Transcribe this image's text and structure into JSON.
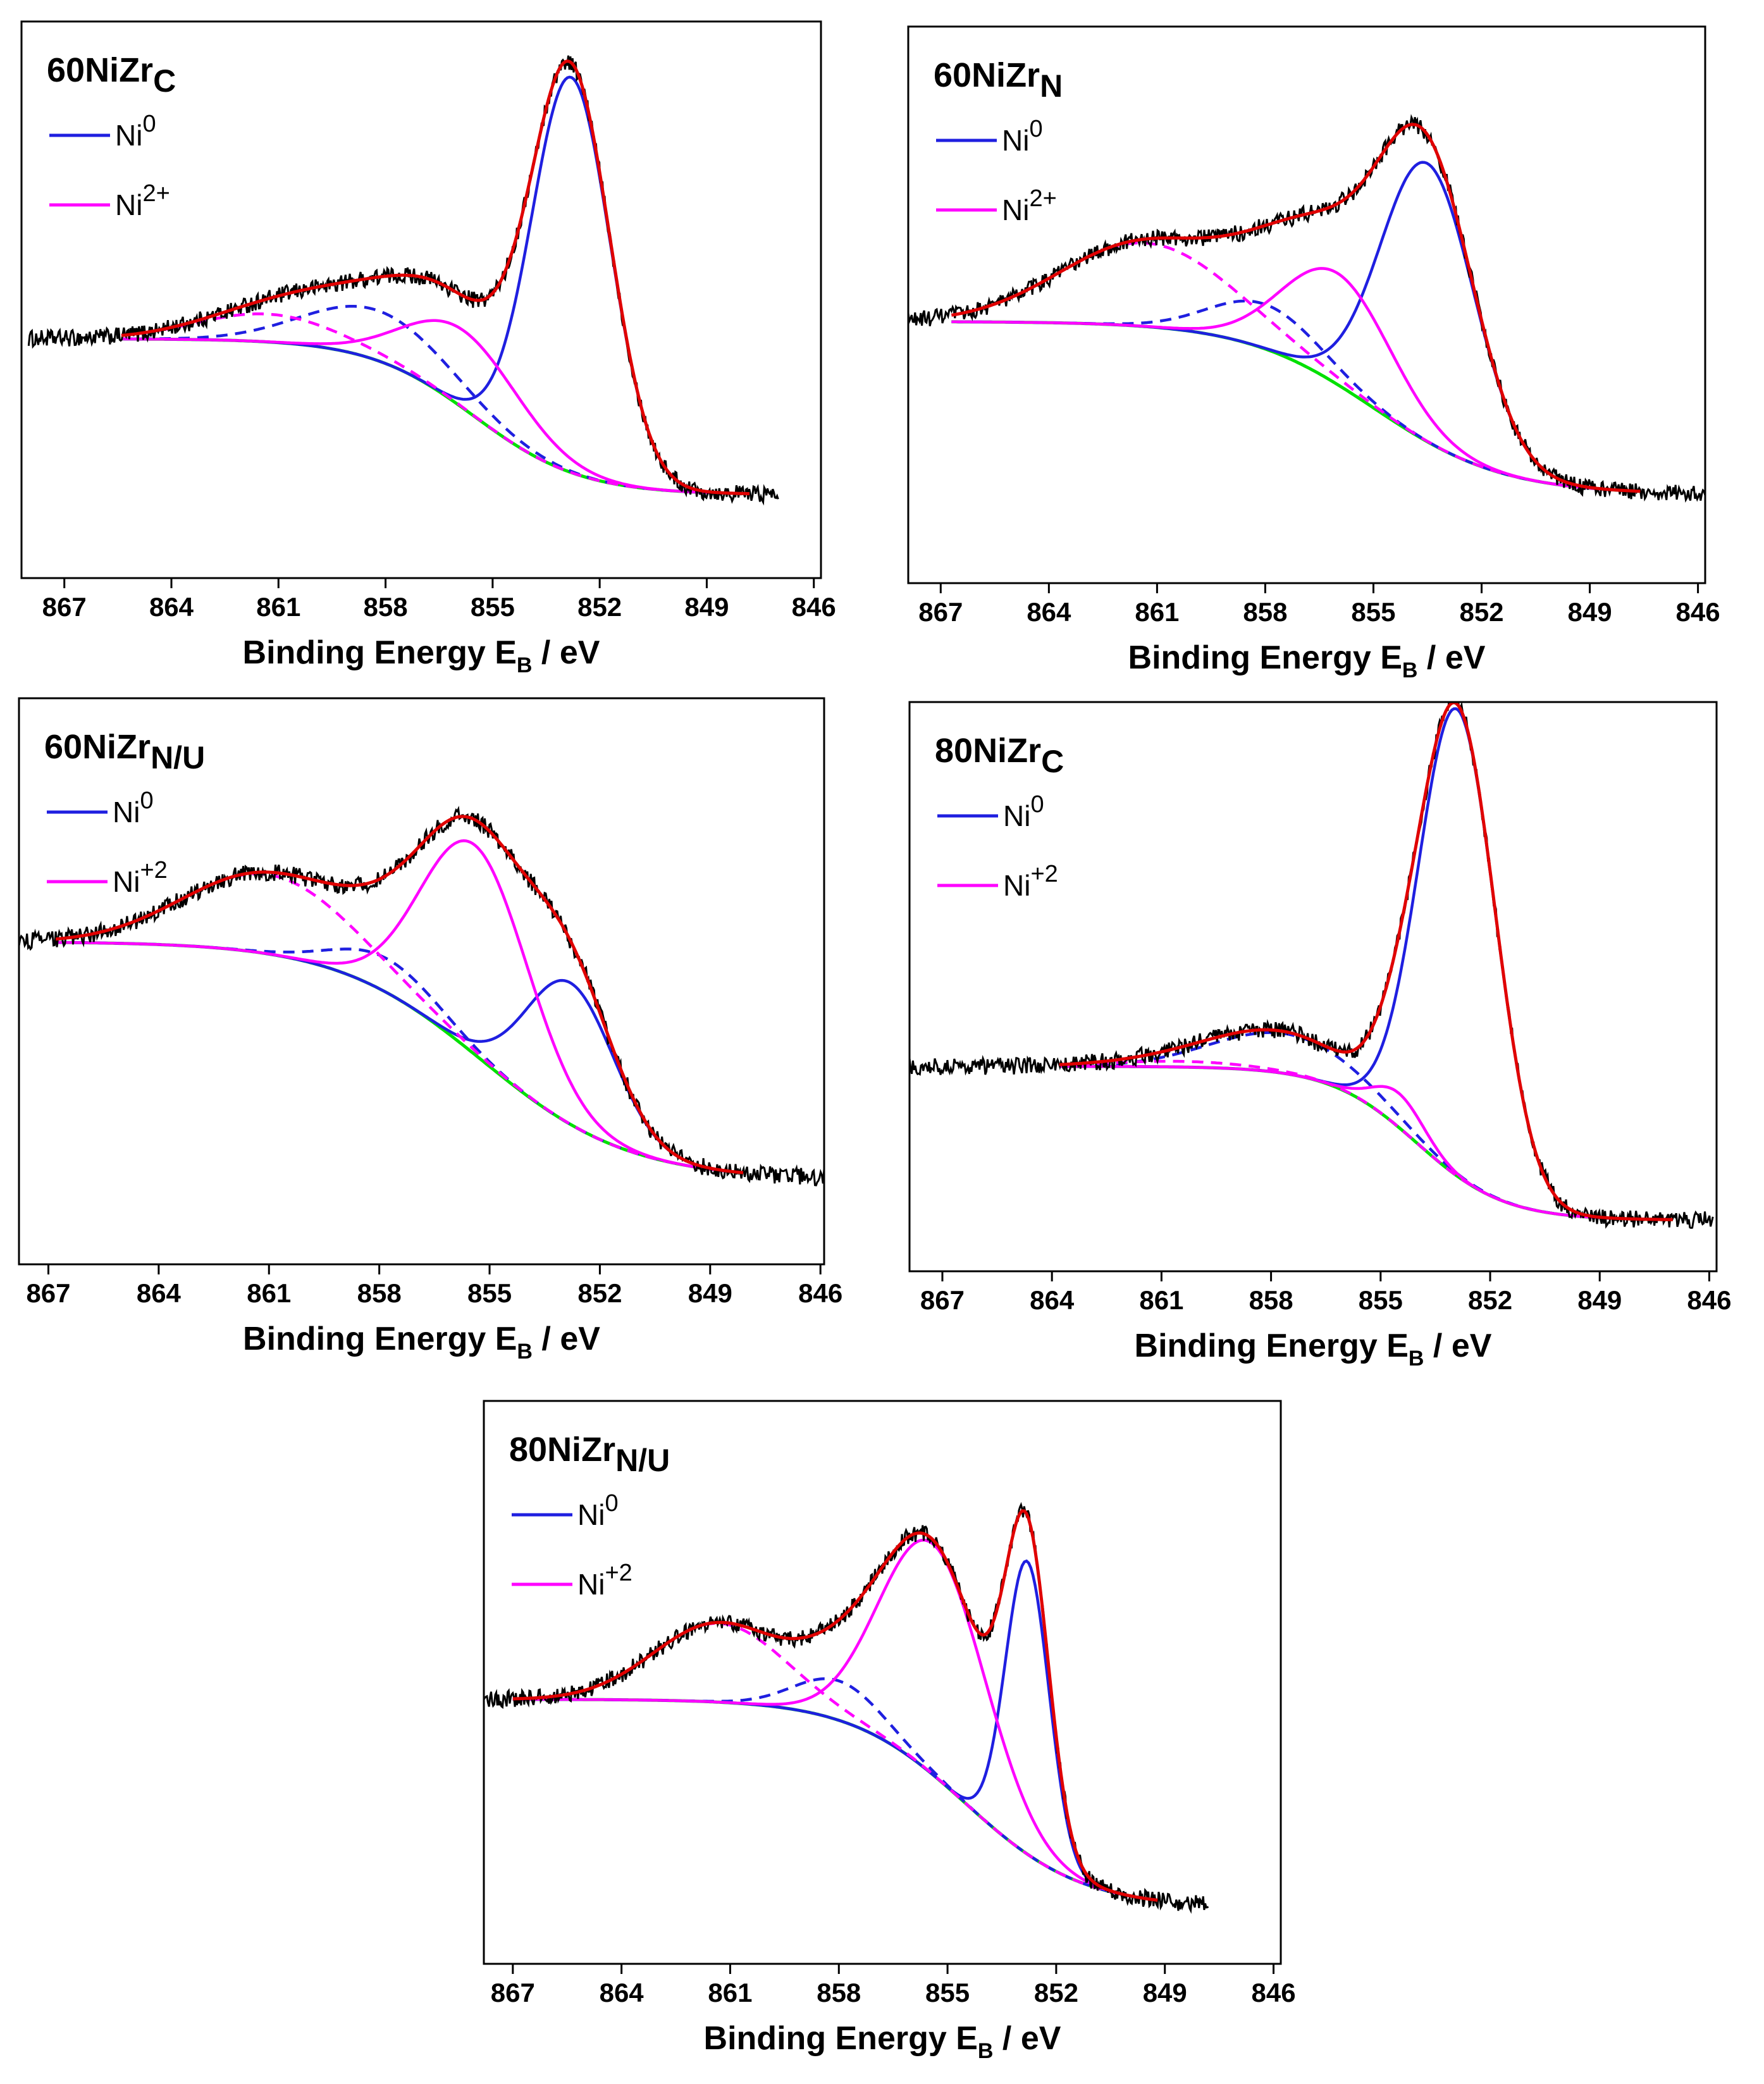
{
  "figure": {
    "xlabel_main": "Binding Energy E",
    "xlabel_sub": "B",
    "xlabel_unit": " / eV"
  },
  "chart_data": [
    {
      "type": "line",
      "id": "p1",
      "title_main": "60NiZr",
      "title_sub": "C",
      "legend": [
        {
          "label": "Ni",
          "sup": "0",
          "color": "#1f1fe0"
        },
        {
          "label": "Ni",
          "sup": "2+",
          "color": "#ff00ff"
        }
      ],
      "xlim": [
        868.2,
        845.8
      ],
      "ylim": [
        0,
        1
      ],
      "xticks": [
        867,
        864,
        861,
        858,
        855,
        852,
        849,
        846
      ],
      "data_start": 868.0,
      "data_end": 847.0,
      "fit_start": 865.4,
      "fit_end": 847.8,
      "background": {
        "low": 0.15,
        "high": 0.43,
        "center": 855.5,
        "width": 1.5
      },
      "peaks": [
        {
          "series": "Ni0 main",
          "center": 852.8,
          "amp": 0.71,
          "sigma": 1.1,
          "color": "#1f1fe0",
          "dash": false
        },
        {
          "series": "Ni0 satellite",
          "center": 858.2,
          "amp": 0.09,
          "sigma": 2.0,
          "color": "#1f1fe0",
          "dash": true
        },
        {
          "series": "Ni2+ main",
          "center": 855.8,
          "amp": 0.14,
          "sigma": 1.6,
          "color": "#ff00ff",
          "dash": false
        },
        {
          "series": "Ni2+ satellite",
          "center": 861.3,
          "amp": 0.05,
          "sigma": 2.0,
          "color": "#ff00ff",
          "dash": true
        }
      ]
    },
    {
      "type": "line",
      "id": "p2",
      "title_main": "60NiZr",
      "title_sub": "N",
      "legend": [
        {
          "label": "Ni",
          "sup": "0",
          "color": "#1f1fe0"
        },
        {
          "label": "Ni",
          "sup": "2+",
          "color": "#ff00ff"
        }
      ],
      "xlim": [
        867.9,
        845.8
      ],
      "ylim": [
        0,
        1
      ],
      "xticks": [
        867,
        864,
        861,
        858,
        855,
        852,
        849,
        846
      ],
      "data_start": 867.9,
      "data_end": 845.8,
      "fit_start": 866.7,
      "fit_end": 847.6,
      "background": {
        "low": 0.16,
        "high": 0.47,
        "center": 855.0,
        "width": 1.8
      },
      "peaks": [
        {
          "series": "Ni0 main",
          "center": 853.5,
          "amp": 0.5,
          "sigma": 1.3,
          "color": "#1f1fe0",
          "dash": false
        },
        {
          "series": "Ni0 satellite",
          "center": 858.0,
          "amp": 0.08,
          "sigma": 1.5,
          "color": "#1f1fe0",
          "dash": true
        },
        {
          "series": "Ni2+ main",
          "center": 856.0,
          "amp": 0.2,
          "sigma": 1.5,
          "color": "#ff00ff",
          "dash": false
        },
        {
          "series": "Ni2+ satellite",
          "center": 861.3,
          "amp": 0.15,
          "sigma": 2.4,
          "color": "#ff00ff",
          "dash": true
        }
      ]
    },
    {
      "type": "line",
      "id": "p3",
      "title_main": "60NiZr",
      "title_sub": "N/U",
      "legend": [
        {
          "label": "Ni",
          "sup": "0",
          "color": "#1f1fe0"
        },
        {
          "label": "Ni",
          "sup": "+2",
          "color": "#ff00ff"
        }
      ],
      "xlim": [
        867.8,
        845.9
      ],
      "ylim": [
        0,
        1
      ],
      "xticks": [
        867,
        864,
        861,
        858,
        855,
        852,
        849,
        846
      ],
      "data_start": 867.8,
      "data_end": 845.9,
      "fit_start": 866.8,
      "fit_end": 848.1,
      "background": {
        "low": 0.15,
        "high": 0.57,
        "center": 855.2,
        "width": 2.0
      },
      "peaks": [
        {
          "series": "Ni0 main",
          "center": 852.8,
          "amp": 0.25,
          "sigma": 1.2,
          "color": "#1f1fe0",
          "dash": false
        },
        {
          "series": "Ni0 satellite",
          "center": 857.8,
          "amp": 0.06,
          "sigma": 1.4,
          "color": "#1f1fe0",
          "dash": true
        },
        {
          "series": "Ni2+ main",
          "center": 855.4,
          "amp": 0.37,
          "sigma": 1.45,
          "color": "#ff00ff",
          "dash": false
        },
        {
          "series": "Ni2+ satellite",
          "center": 861.0,
          "amp": 0.14,
          "sigma": 2.3,
          "color": "#ff00ff",
          "dash": true
        }
      ]
    },
    {
      "type": "line",
      "id": "p4",
      "title_main": "80NiZr",
      "title_sub": "C",
      "legend": [
        {
          "label": "Ni",
          "sup": "0",
          "color": "#1f1fe0"
        },
        {
          "label": "Ni",
          "sup": "+2",
          "color": "#ff00ff"
        }
      ],
      "xlim": [
        867.9,
        845.8
      ],
      "ylim": [
        0,
        1
      ],
      "xticks": [
        867,
        864,
        861,
        858,
        855,
        852,
        849,
        846
      ],
      "data_start": 867.9,
      "data_end": 845.9,
      "fit_start": 863.8,
      "fit_end": 847.0,
      "background": {
        "low": 0.09,
        "high": 0.36,
        "center": 854.0,
        "width": 1.2
      },
      "peaks": [
        {
          "series": "Ni0 main",
          "center": 852.9,
          "amp": 0.82,
          "sigma": 1.05,
          "color": "#1f1fe0",
          "dash": false
        },
        {
          "series": "Ni0 satellite",
          "center": 857.6,
          "amp": 0.07,
          "sigma": 2.0,
          "color": "#1f1fe0",
          "dash": true
        },
        {
          "series": "Ni2+ main",
          "center": 854.5,
          "amp": 0.06,
          "sigma": 0.7,
          "color": "#ff00ff",
          "dash": false
        },
        {
          "series": "Ni2+ satellite",
          "center": 860.5,
          "amp": 0.01,
          "sigma": 2.0,
          "color": "#ff00ff",
          "dash": true
        }
      ]
    },
    {
      "type": "line",
      "id": "p5",
      "title_main": "80NiZr",
      "title_sub": "N/U",
      "legend": [
        {
          "label": "Ni",
          "sup": "0",
          "color": "#1f1fe0"
        },
        {
          "label": "Ni",
          "sup": "+2",
          "color": "#ff00ff"
        }
      ],
      "xlim": [
        867.8,
        845.8
      ],
      "ylim": [
        0,
        1
      ],
      "xticks": [
        867,
        864,
        861,
        858,
        855,
        852,
        849,
        846
      ],
      "data_start": 867.8,
      "data_end": 847.8,
      "fit_start": 867.0,
      "fit_end": 849.2,
      "background": {
        "low": 0.1,
        "high": 0.47,
        "center": 854.5,
        "width": 1.6
      },
      "peaks": [
        {
          "series": "Ni0 main",
          "center": 852.8,
          "amp": 0.52,
          "sigma": 0.6,
          "color": "#1f1fe0",
          "dash": false
        },
        {
          "series": "Ni0 satellite",
          "center": 858.0,
          "amp": 0.07,
          "sigma": 1.2,
          "color": "#1f1fe0",
          "dash": true
        },
        {
          "series": "Ni2+ main",
          "center": 855.4,
          "amp": 0.41,
          "sigma": 1.45,
          "color": "#ff00ff",
          "dash": false
        },
        {
          "series": "Ni2+ satellite",
          "center": 861.3,
          "amp": 0.14,
          "sigma": 1.8,
          "color": "#ff00ff",
          "dash": true
        }
      ]
    }
  ]
}
